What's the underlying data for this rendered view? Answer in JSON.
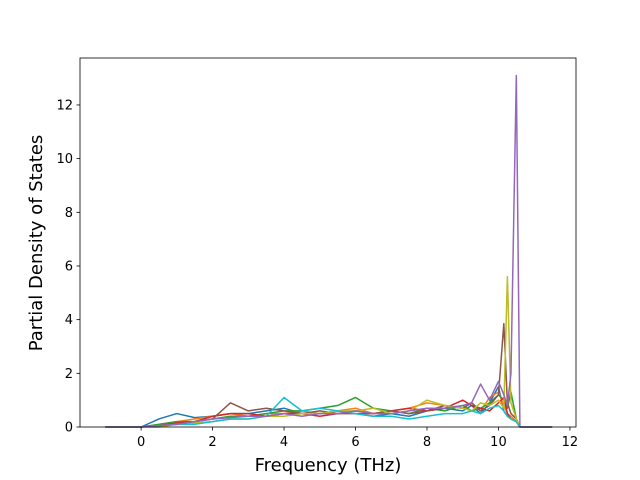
{
  "chart_data": {
    "type": "line",
    "xlabel": "Frequency (THz)",
    "ylabel": "Partial Density of States",
    "xlim": [
      -1.71,
      12.17
    ],
    "ylim": [
      0,
      13.75
    ],
    "xticks": [
      0,
      2,
      4,
      6,
      8,
      10,
      12
    ],
    "yticks": [
      0,
      2,
      4,
      6,
      8,
      10,
      12
    ],
    "x": [
      -1,
      -0.5,
      0,
      0.5,
      1,
      1.5,
      2,
      2.5,
      3,
      3.5,
      4,
      4.5,
      5,
      5.5,
      6,
      6.5,
      7,
      7.5,
      8,
      8.5,
      9,
      9.25,
      9.5,
      9.75,
      10,
      10.15,
      10.25,
      10.35,
      10.5,
      10.6,
      11,
      11.5
    ],
    "series": [
      {
        "color": "#1f77b4",
        "values": [
          0,
          0,
          0,
          0.3,
          0.5,
          0.35,
          0.4,
          0.5,
          0.5,
          0.6,
          0.7,
          0.5,
          0.5,
          0.6,
          0.5,
          0.4,
          0.5,
          0.4,
          0.6,
          0.7,
          0.6,
          0.8,
          0.5,
          0.9,
          1.5,
          0.6,
          0.4,
          0.3,
          0.2,
          0,
          0,
          0
        ]
      },
      {
        "color": "#ff7f0e",
        "values": [
          0,
          0,
          0,
          0.1,
          0.2,
          0.3,
          0.4,
          0.5,
          0.4,
          0.5,
          0.5,
          0.6,
          0.5,
          0.6,
          0.7,
          0.5,
          0.6,
          0.7,
          0.9,
          0.8,
          0.7,
          0.9,
          0.6,
          1.1,
          1.3,
          0.8,
          0.5,
          0.4,
          0.2,
          0,
          0,
          0
        ]
      },
      {
        "color": "#2ca02c",
        "values": [
          0,
          0,
          0,
          0.1,
          0.2,
          0.2,
          0.3,
          0.4,
          0.4,
          0.5,
          0.6,
          0.6,
          0.7,
          0.8,
          1.1,
          0.7,
          0.6,
          0.5,
          0.7,
          0.6,
          0.8,
          0.6,
          0.7,
          0.9,
          1.2,
          1.0,
          0.7,
          1.3,
          0.3,
          0,
          0,
          0
        ]
      },
      {
        "color": "#d62728",
        "values": [
          0,
          0,
          0,
          0.05,
          0.15,
          0.2,
          0.4,
          0.5,
          0.5,
          0.4,
          0.5,
          0.5,
          0.4,
          0.5,
          0.6,
          0.5,
          0.6,
          0.7,
          0.6,
          0.7,
          1.0,
          0.8,
          0.7,
          0.6,
          0.9,
          1.1,
          0.5,
          0.3,
          0.2,
          0,
          0,
          0
        ]
      },
      {
        "color": "#8c564b",
        "values": [
          0,
          0,
          0,
          0.05,
          0.1,
          0.2,
          0.3,
          0.9,
          0.6,
          0.7,
          0.6,
          0.5,
          0.6,
          0.5,
          0.5,
          0.5,
          0.6,
          0.5,
          0.6,
          0.8,
          0.7,
          0.9,
          0.6,
          0.8,
          1.2,
          3.85,
          0.9,
          0.5,
          0.3,
          0,
          0,
          0
        ]
      },
      {
        "color": "#bcbd22",
        "values": [
          0,
          0,
          0,
          0,
          0.1,
          0.15,
          0.2,
          0.3,
          0.3,
          0.4,
          0.4,
          0.5,
          0.5,
          0.6,
          0.6,
          0.7,
          0.5,
          0.6,
          1.0,
          0.8,
          0.7,
          0.6,
          0.9,
          0.8,
          1.0,
          0.7,
          5.6,
          0.9,
          0.3,
          0,
          0,
          0
        ]
      },
      {
        "color": "#17becf",
        "values": [
          0,
          0,
          0,
          0.05,
          0.1,
          0.1,
          0.2,
          0.3,
          0.3,
          0.4,
          1.1,
          0.6,
          0.7,
          0.6,
          0.5,
          0.4,
          0.4,
          0.3,
          0.4,
          0.5,
          0.5,
          0.6,
          0.5,
          0.7,
          0.8,
          0.6,
          0.4,
          0.3,
          0.2,
          0,
          0,
          0
        ]
      },
      {
        "color": "#9467bd",
        "values": [
          0,
          0,
          0,
          0.05,
          0.1,
          0.2,
          0.3,
          0.35,
          0.4,
          0.4,
          0.5,
          0.4,
          0.5,
          0.5,
          0.6,
          0.5,
          0.5,
          0.6,
          0.7,
          0.7,
          0.8,
          0.9,
          1.6,
          1.0,
          1.7,
          1.2,
          0.8,
          2.0,
          13.1,
          0,
          0,
          0
        ]
      }
    ]
  }
}
